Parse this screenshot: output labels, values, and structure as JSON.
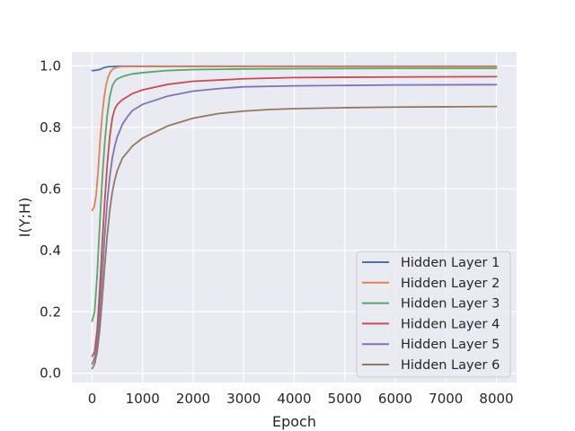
{
  "chart_data": {
    "type": "line",
    "title": "",
    "xlabel": "Epoch",
    "ylabel": "I(Y;H)",
    "xlim": [
      -400,
      8400
    ],
    "ylim": [
      -0.03,
      1.045
    ],
    "xticks": [
      0,
      1000,
      2000,
      3000,
      4000,
      5000,
      6000,
      7000,
      8000
    ],
    "xtick_labels": [
      "0",
      "1000",
      "2000",
      "3000",
      "4000",
      "5000",
      "6000",
      "7000",
      "8000"
    ],
    "yticks": [
      0.0,
      0.2,
      0.4,
      0.6,
      0.8,
      1.0
    ],
    "ytick_labels": [
      "0.0",
      "0.2",
      "0.4",
      "0.6",
      "0.8",
      "1.0"
    ],
    "grid": true,
    "legend_position": "bottom-right",
    "series": [
      {
        "name": "Hidden Layer 1",
        "color": "#4c72b0",
        "x": [
          0,
          50,
          100,
          150,
          200,
          250,
          300,
          350,
          400,
          500,
          600,
          800,
          1000,
          2000,
          4000,
          6000,
          8000
        ],
        "y": [
          0.985,
          0.985,
          0.987,
          0.988,
          0.992,
          0.995,
          0.997,
          0.998,
          0.998,
          0.999,
          0.999,
          0.999,
          0.999,
          0.999,
          0.999,
          0.999,
          0.999
        ]
      },
      {
        "name": "Hidden Layer 2",
        "color": "#dd8452",
        "x": [
          0,
          40,
          80,
          120,
          160,
          200,
          240,
          280,
          320,
          360,
          400,
          450,
          500,
          600,
          800,
          1000,
          2000,
          4000,
          8000
        ],
        "y": [
          0.53,
          0.54,
          0.58,
          0.66,
          0.76,
          0.84,
          0.9,
          0.94,
          0.965,
          0.98,
          0.988,
          0.993,
          0.996,
          0.998,
          0.998,
          0.998,
          0.998,
          0.998,
          0.998
        ]
      },
      {
        "name": "Hidden Layer 3",
        "color": "#55a868",
        "x": [
          0,
          50,
          100,
          150,
          200,
          250,
          300,
          350,
          400,
          450,
          500,
          600,
          700,
          800,
          1000,
          1500,
          2000,
          3000,
          4000,
          6000,
          8000
        ],
        "y": [
          0.17,
          0.2,
          0.32,
          0.48,
          0.63,
          0.75,
          0.84,
          0.9,
          0.935,
          0.95,
          0.958,
          0.965,
          0.97,
          0.974,
          0.978,
          0.985,
          0.988,
          0.99,
          0.991,
          0.992,
          0.992
        ]
      },
      {
        "name": "Hidden Layer 4",
        "color": "#c44e52",
        "x": [
          0,
          50,
          100,
          150,
          200,
          250,
          300,
          350,
          400,
          450,
          500,
          600,
          700,
          800,
          1000,
          1500,
          2000,
          3000,
          4000,
          6000,
          8000
        ],
        "y": [
          0.055,
          0.07,
          0.14,
          0.27,
          0.42,
          0.56,
          0.68,
          0.77,
          0.83,
          0.86,
          0.875,
          0.89,
          0.9,
          0.91,
          0.922,
          0.94,
          0.95,
          0.958,
          0.962,
          0.964,
          0.965
        ]
      },
      {
        "name": "Hidden Layer 5",
        "color": "#8172b3",
        "x": [
          0,
          50,
          100,
          150,
          200,
          250,
          300,
          350,
          400,
          450,
          500,
          600,
          700,
          800,
          1000,
          1500,
          2000,
          2500,
          3000,
          4000,
          6000,
          8000
        ],
        "y": [
          0.03,
          0.05,
          0.1,
          0.2,
          0.32,
          0.45,
          0.56,
          0.64,
          0.7,
          0.74,
          0.77,
          0.81,
          0.835,
          0.855,
          0.875,
          0.902,
          0.918,
          0.926,
          0.932,
          0.935,
          0.938,
          0.939
        ]
      },
      {
        "name": "Hidden Layer 6",
        "color": "#937860",
        "x": [
          0,
          50,
          100,
          150,
          200,
          250,
          300,
          350,
          400,
          450,
          500,
          600,
          700,
          800,
          1000,
          1500,
          2000,
          2500,
          3000,
          3500,
          4000,
          5000,
          6000,
          7000,
          8000
        ],
        "y": [
          0.015,
          0.03,
          0.07,
          0.14,
          0.24,
          0.35,
          0.45,
          0.53,
          0.59,
          0.63,
          0.66,
          0.7,
          0.72,
          0.74,
          0.765,
          0.805,
          0.83,
          0.845,
          0.853,
          0.858,
          0.861,
          0.864,
          0.866,
          0.867,
          0.868
        ]
      }
    ]
  }
}
